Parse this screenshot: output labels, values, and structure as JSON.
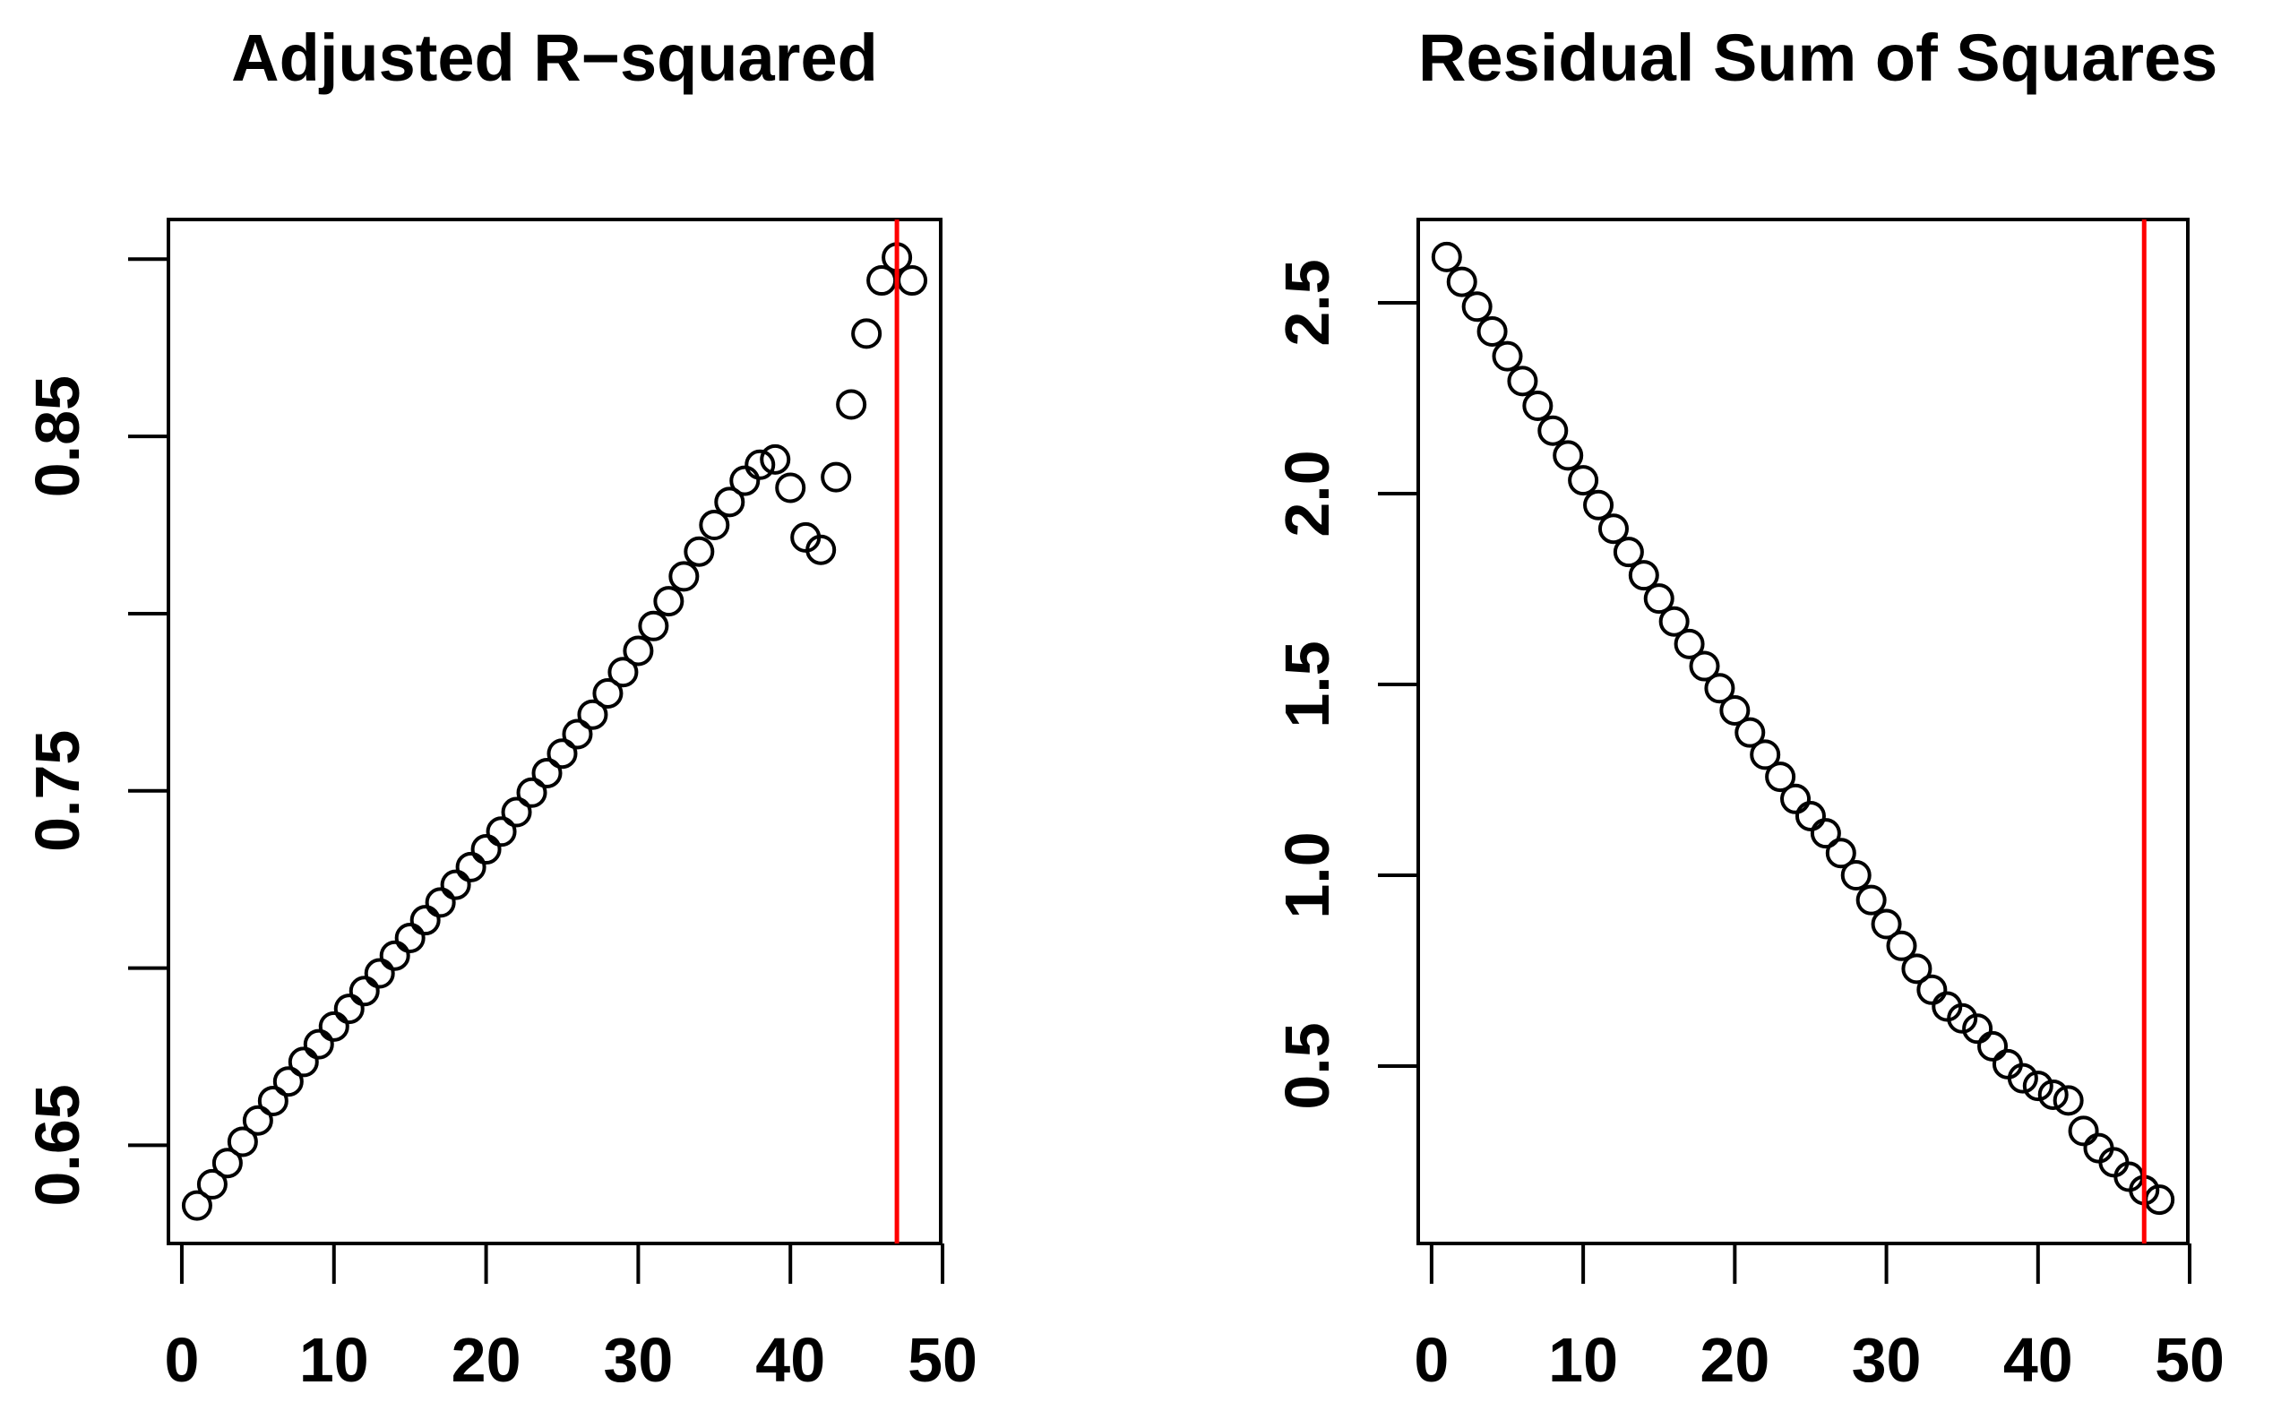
{
  "figure": {
    "background": "#ffffff",
    "point_style": "open-circle",
    "point_color": "#000000",
    "accent_color": "#FF0000"
  },
  "chart_data": [
    {
      "type": "scatter",
      "title": "Adjusted R−squared",
      "xlabel": "",
      "ylabel": "",
      "grid": false,
      "legend": null,
      "xlim": [
        -0.88,
        49.88
      ],
      "ylim": [
        0.6223,
        0.9112
      ],
      "x_ticks": {
        "values": [
          0,
          10,
          20,
          30,
          40,
          50
        ],
        "labels": [
          "0",
          "10",
          "20",
          "30",
          "40",
          "50"
        ]
      },
      "y_ticks": {
        "values": [
          0.65,
          0.7,
          0.75,
          0.8,
          0.85,
          0.9
        ],
        "labels": [
          "0.65",
          "",
          "0.75",
          "",
          "0.85",
          ""
        ]
      },
      "x": [
        1,
        2,
        3,
        4,
        5,
        6,
        7,
        8,
        9,
        10,
        11,
        12,
        13,
        14,
        15,
        16,
        17,
        18,
        19,
        20,
        21,
        22,
        23,
        24,
        25,
        26,
        27,
        28,
        29,
        30,
        31,
        32,
        33,
        34,
        35,
        36,
        37,
        38,
        39,
        40,
        41,
        42,
        43,
        44,
        45,
        46,
        47,
        48
      ],
      "y": [
        0.633,
        0.639,
        0.645,
        0.651,
        0.657,
        0.6625,
        0.668,
        0.6735,
        0.6785,
        0.6835,
        0.6885,
        0.6935,
        0.6985,
        0.7035,
        0.7085,
        0.7135,
        0.7185,
        0.7235,
        0.7285,
        0.7335,
        0.7385,
        0.744,
        0.7495,
        0.755,
        0.7605,
        0.766,
        0.7715,
        0.7775,
        0.7835,
        0.7895,
        0.7965,
        0.8035,
        0.8105,
        0.8175,
        0.825,
        0.8315,
        0.8375,
        0.842,
        0.8435,
        0.8355,
        0.8215,
        0.818,
        0.8385,
        0.859,
        0.879,
        0.894,
        0.9005,
        0.894
      ],
      "vline": {
        "x": 47,
        "color": "#FF0000"
      }
    },
    {
      "type": "scatter",
      "title": "Residual Sum of Squares",
      "xlabel": "",
      "ylabel": "",
      "grid": false,
      "legend": null,
      "xlim": [
        -0.88,
        49.88
      ],
      "ylim": [
        0.0352,
        2.7183
      ],
      "x_ticks": {
        "values": [
          0,
          10,
          20,
          30,
          40,
          50
        ],
        "labels": [
          "0",
          "10",
          "20",
          "30",
          "40",
          "50"
        ]
      },
      "y_ticks": {
        "values": [
          0.5,
          1.0,
          1.5,
          2.0,
          2.5
        ],
        "labels": [
          "0.5",
          "1.0",
          "1.5",
          "2.0",
          "2.5"
        ]
      },
      "x": [
        1,
        2,
        3,
        4,
        5,
        6,
        7,
        8,
        9,
        10,
        11,
        12,
        13,
        14,
        15,
        16,
        17,
        18,
        19,
        20,
        21,
        22,
        23,
        24,
        25,
        26,
        27,
        28,
        29,
        30,
        31,
        32,
        33,
        34,
        35,
        36,
        37,
        38,
        39,
        40,
        41,
        42,
        43,
        44,
        45,
        46,
        47,
        48
      ],
      "y": [
        2.62,
        2.555,
        2.49,
        2.425,
        2.36,
        2.295,
        2.23,
        2.165,
        2.1,
        2.035,
        1.97,
        1.908,
        1.847,
        1.786,
        1.725,
        1.665,
        1.606,
        1.548,
        1.49,
        1.432,
        1.374,
        1.316,
        1.258,
        1.2,
        1.155,
        1.11,
        1.058,
        1.0,
        0.935,
        0.872,
        0.815,
        0.755,
        0.7,
        0.656,
        0.625,
        0.598,
        0.552,
        0.505,
        0.468,
        0.448,
        0.425,
        0.41,
        0.33,
        0.285,
        0.248,
        0.21,
        0.175,
        0.15
      ],
      "vline": {
        "x": 47,
        "color": "#FF0000"
      }
    }
  ]
}
